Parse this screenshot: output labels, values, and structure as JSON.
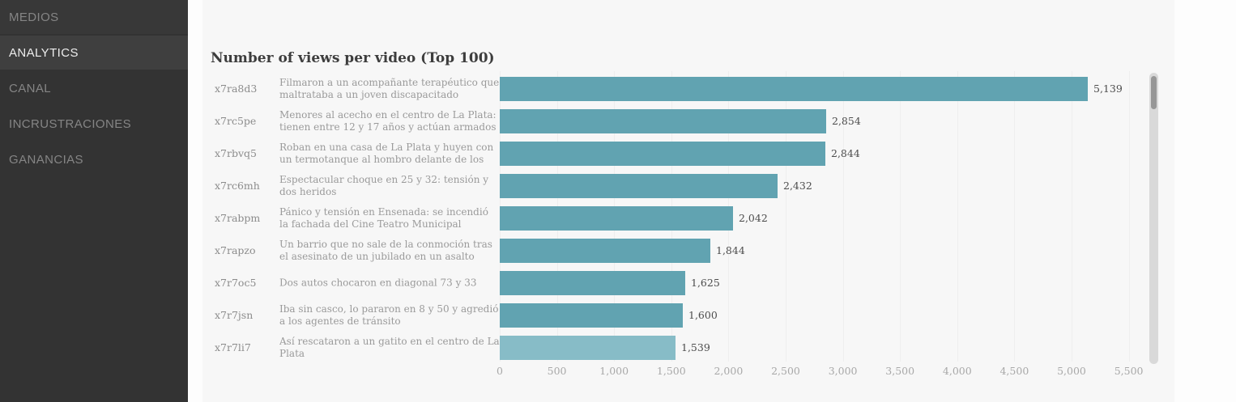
{
  "sidebar": {
    "items": [
      {
        "label": "MEDIOS",
        "active": false
      },
      {
        "label": "ANALYTICS",
        "active": true
      },
      {
        "label": "CANAL",
        "active": false
      },
      {
        "label": "INCRUSTRACIONES",
        "active": false
      },
      {
        "label": "GANANCIAS",
        "active": false
      }
    ]
  },
  "chart_data": {
    "type": "bar",
    "orientation": "horizontal",
    "title": "Number of views per video (Top 100)",
    "xlabel": "",
    "ylabel": "",
    "xlim": [
      0,
      5500
    ],
    "x_ticks": [
      "0",
      "500",
      "1,000",
      "1,500",
      "2,000",
      "2,500",
      "3,000",
      "3,500",
      "4,000",
      "4,500",
      "5,000",
      "5,500"
    ],
    "grid": true,
    "legend_position": "none",
    "colors": {
      "bar": "#61a3b1",
      "bar_highlight": "#87bcc7"
    },
    "rows": [
      {
        "id": "x7ra8d3",
        "label": "Filmaron a un acompañante terapéutico que maltrataba a un joven discapacitado",
        "value": 5139,
        "value_label": "5,139",
        "highlighted": false
      },
      {
        "id": "x7rc5pe",
        "label": "Menores al acecho en el centro de La Plata: tienen entre 12 y 17 años y actúan armados",
        "value": 2854,
        "value_label": "2,854",
        "highlighted": false
      },
      {
        "id": "x7rbvq5",
        "label": "Roban en una casa de La Plata y huyen con un termotanque al hombro delante de los policías",
        "value": 2844,
        "value_label": "2,844",
        "highlighted": false
      },
      {
        "id": "x7rc6mh",
        "label": "Espectacular choque en 25 y 32: tensión y dos heridos",
        "value": 2432,
        "value_label": "2,432",
        "highlighted": false
      },
      {
        "id": "x7rabpm",
        "label": "Pánico y tensión en Ensenada: se incendió la fachada del Cine Teatro Municipal",
        "value": 2042,
        "value_label": "2,042",
        "highlighted": false
      },
      {
        "id": "x7rapzo",
        "label": "Un barrio que no sale de la conmoción tras el asesinato de un jubilado en un asalto",
        "value": 1844,
        "value_label": "1,844",
        "highlighted": false
      },
      {
        "id": "x7r7oc5",
        "label": "Dos autos chocaron en diagonal 73 y 33",
        "value": 1625,
        "value_label": "1,625",
        "highlighted": false
      },
      {
        "id": "x7r7jsn",
        "label": "Iba sin casco, lo pararon en 8 y 50 y agredió a los agentes de tránsito",
        "value": 1600,
        "value_label": "1,600",
        "highlighted": false
      },
      {
        "id": "x7r7li7",
        "label": "Así rescataron a un gatito en el centro de La Plata",
        "value": 1539,
        "value_label": "1,539",
        "highlighted": true
      }
    ]
  }
}
